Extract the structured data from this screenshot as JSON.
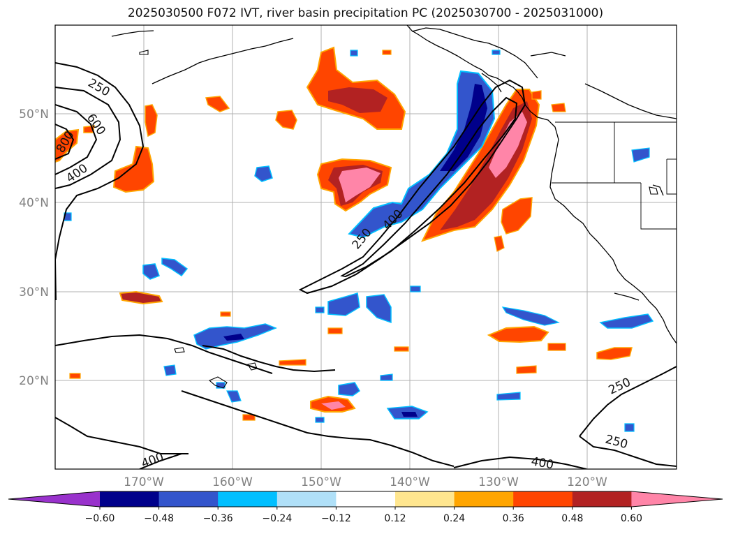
{
  "title": "2025030500 F072 IVT, river basin precipitation PC (2025030700 - 2025031000)",
  "map": {
    "lat_ticks": [
      "50°N",
      "40°N",
      "30°N",
      "20°N"
    ],
    "lon_ticks": [
      "170°W",
      "160°W",
      "150°W",
      "140°W",
      "130°W",
      "120°W"
    ],
    "grid": true,
    "coastline_color": "#000000",
    "ivt_contours": {
      "levels": [
        250,
        400,
        600,
        800
      ],
      "labels": [
        "250",
        "600",
        "800",
        "400",
        "250",
        "400",
        "250",
        "250",
        "400",
        "400"
      ]
    }
  },
  "colorbar": {
    "tick_labels": [
      "−0.60",
      "−0.48",
      "−0.36",
      "−0.24",
      "−0.12",
      "0.12",
      "0.24",
      "0.36",
      "0.48",
      "0.60"
    ],
    "colors": [
      "#9932cc",
      "#00008b",
      "#3355cc",
      "#00bfff",
      "#b0e0f8",
      "#ffffff",
      "#ffe68f",
      "#ffa500",
      "#ff4500",
      "#b22222",
      "#ff85a8"
    ]
  }
}
